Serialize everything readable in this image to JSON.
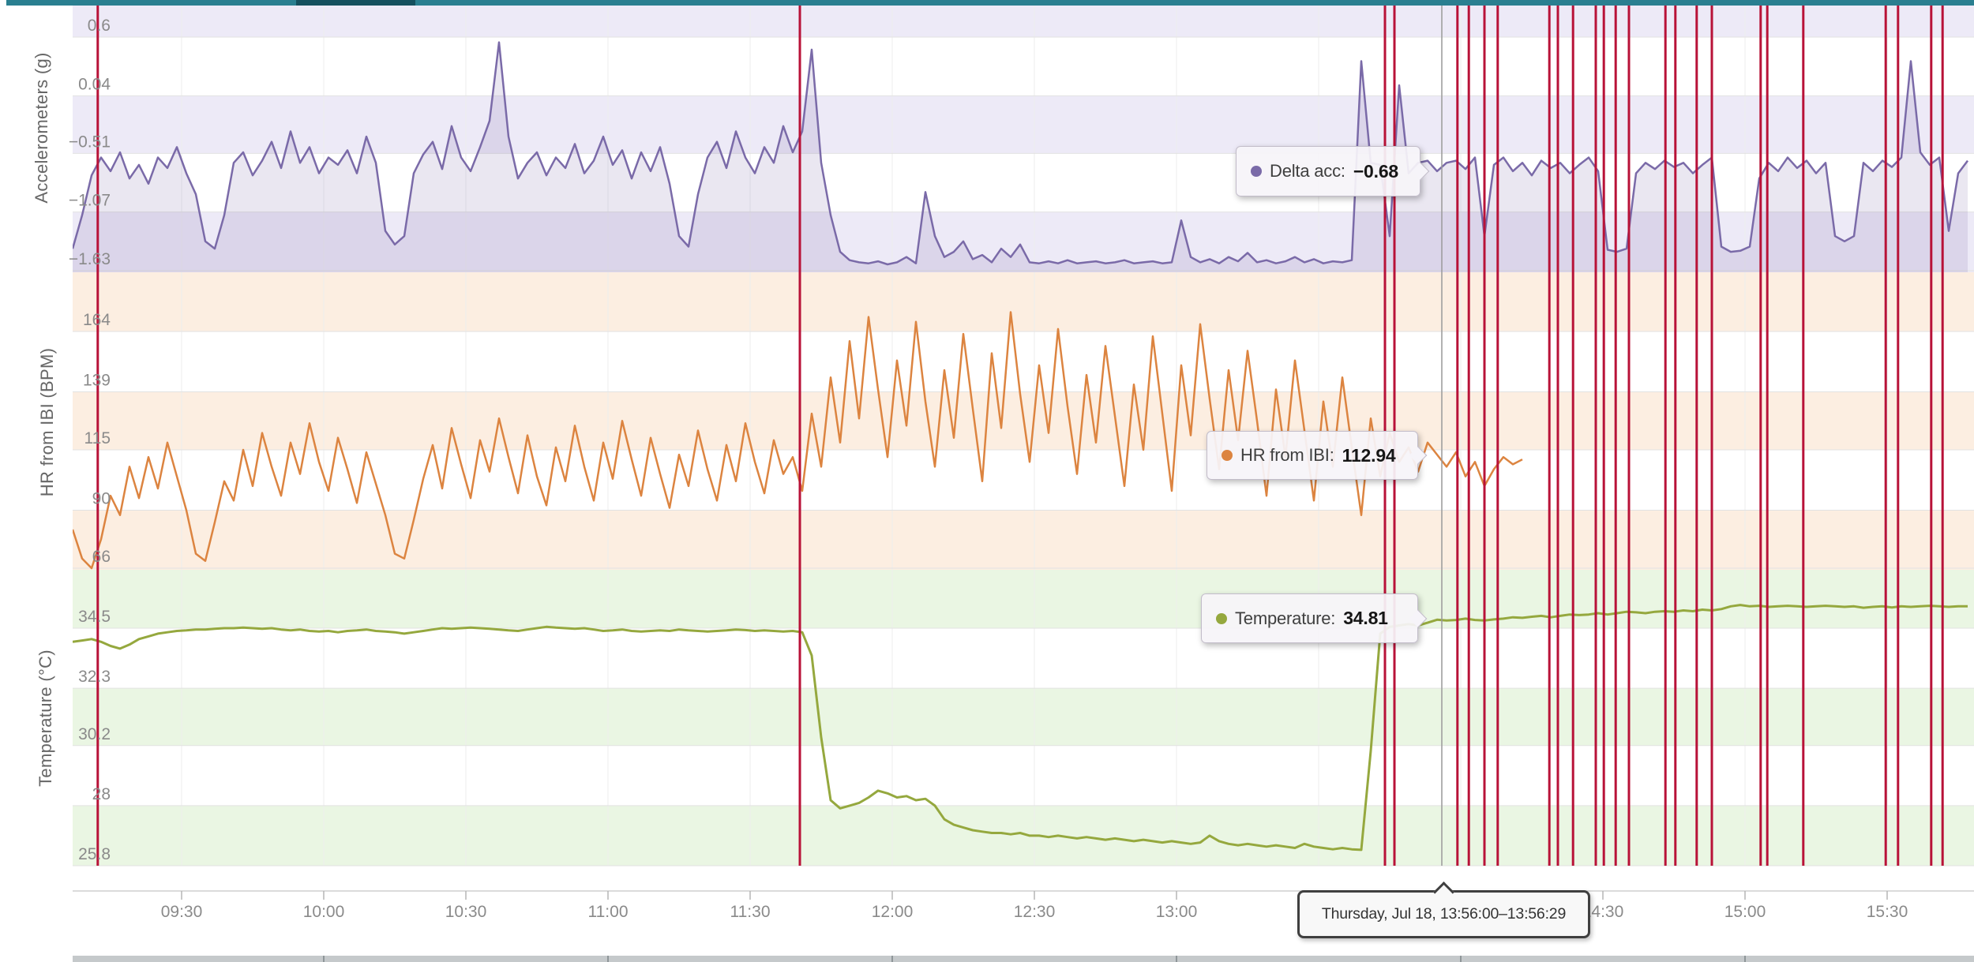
{
  "top_range_bar": {
    "track_color": "#2a7f90",
    "thumb_color": "#15505e"
  },
  "tooltips": {
    "delta_acc": {
      "label": "Delta acc:",
      "value": "−0.68"
    },
    "hr": {
      "label": "HR from IBI:",
      "value": "112.94"
    },
    "temperature": {
      "label": "Temperature:",
      "value": "34.81"
    },
    "time_range": {
      "text": "Thursday, Jul 18, 13:56:00–13:56:29"
    }
  },
  "chart_data": {
    "type": "line",
    "x_ticks": [
      {
        "label": "09:30",
        "minute": 30
      },
      {
        "label": "10:00",
        "minute": 60
      },
      {
        "label": "10:30",
        "minute": 90
      },
      {
        "label": "11:00",
        "minute": 120
      },
      {
        "label": "11:30",
        "minute": 150
      },
      {
        "label": "12:00",
        "minute": 180
      },
      {
        "label": "12:30",
        "minute": 210
      },
      {
        "label": "13:00",
        "minute": 240
      },
      {
        "label": "13:30",
        "minute": 270
      },
      {
        "label": "14:00",
        "minute": 300
      },
      {
        "label": "14:30",
        "minute": 330
      },
      {
        "label": "15:00",
        "minute": 360
      },
      {
        "label": "15:30",
        "minute": 390
      }
    ],
    "cursor": {
      "minute": 296,
      "time_label": "13:56"
    },
    "event_color": "#b81238",
    "event_line_minutes": [
      12.3,
      160.5,
      284.0,
      286.0,
      299.3,
      301.7,
      305.0,
      307.8,
      318.7,
      320.5,
      323.7,
      328.5,
      330.2,
      332.7,
      335.5,
      343.2,
      345.3,
      349.8,
      353.0,
      363.3,
      364.7,
      372.3,
      389.7,
      392.3,
      399.3,
      401.7
    ],
    "panels": [
      {
        "id": "accelerometer",
        "ylabel": "Accelerometers (g)",
        "yticks": [
          0.6,
          0.04,
          -0.51,
          -1.07,
          -1.63
        ],
        "band_color": "#edeaf7",
        "series": {
          "name": "Delta acc",
          "color": "#7a6aa8",
          "fill": "rgba(122,106,168,0.16)",
          "t0": 7,
          "dt": 2,
          "values": [
            -1.42,
            -1.1,
            -0.72,
            -0.55,
            -0.68,
            -0.5,
            -0.75,
            -0.62,
            -0.8,
            -0.55,
            -0.65,
            -0.45,
            -0.7,
            -0.9,
            -1.35,
            -1.42,
            -1.1,
            -0.6,
            -0.5,
            -0.72,
            -0.58,
            -0.4,
            -0.65,
            -0.3,
            -0.6,
            -0.45,
            -0.7,
            -0.55,
            -0.62,
            -0.48,
            -0.7,
            -0.35,
            -0.6,
            -1.25,
            -1.38,
            -1.3,
            -0.7,
            -0.52,
            -0.4,
            -0.66,
            -0.25,
            -0.55,
            -0.68,
            -0.45,
            -0.2,
            0.55,
            -0.35,
            -0.75,
            -0.6,
            -0.5,
            -0.72,
            -0.55,
            -0.65,
            -0.42,
            -0.7,
            -0.58,
            -0.35,
            -0.62,
            -0.48,
            -0.75,
            -0.5,
            -0.68,
            -0.45,
            -0.8,
            -1.3,
            -1.4,
            -0.9,
            -0.55,
            -0.4,
            -0.65,
            -0.3,
            -0.55,
            -0.7,
            -0.45,
            -0.6,
            -0.25,
            -0.5,
            -0.3,
            0.48,
            -0.6,
            -1.1,
            -1.45,
            -1.53,
            -1.55,
            -1.56,
            -1.54,
            -1.57,
            -1.55,
            -1.5,
            -1.56,
            -0.88,
            -1.3,
            -1.5,
            -1.45,
            -1.35,
            -1.52,
            -1.48,
            -1.55,
            -1.42,
            -1.5,
            -1.38,
            -1.55,
            -1.56,
            -1.54,
            -1.56,
            -1.53,
            -1.56,
            -1.55,
            -1.54,
            -1.56,
            -1.55,
            -1.53,
            -1.56,
            -1.55,
            -1.54,
            -1.56,
            -1.55,
            -1.15,
            -1.5,
            -1.55,
            -1.52,
            -1.56,
            -1.5,
            -1.54,
            -1.46,
            -1.55,
            -1.53,
            -1.56,
            -1.54,
            -1.5,
            -1.55,
            -1.52,
            -1.56,
            -1.54,
            -1.55,
            -1.53,
            0.37,
            -0.6,
            -0.62,
            -1.3,
            0.14,
            -0.7,
            -0.6,
            -0.58,
            -0.68,
            -0.6,
            -0.58,
            -0.66,
            -0.55,
            -1.3,
            -0.62,
            -0.55,
            -0.68,
            -0.6,
            -0.72,
            -0.58,
            -0.65,
            -0.6,
            -0.7,
            -0.62,
            -0.55,
            -0.68,
            -1.43,
            -1.45,
            -1.42,
            -0.7,
            -0.6,
            -0.66,
            -0.58,
            -0.64,
            -0.6,
            -0.7,
            -0.62,
            -0.55,
            -1.4,
            -1.45,
            -1.44,
            -1.4,
            -0.75,
            -0.6,
            -0.68,
            -0.55,
            -0.65,
            -0.58,
            -0.7,
            -0.6,
            -1.3,
            -1.35,
            -1.3,
            -0.6,
            -0.68,
            -0.58,
            -0.64,
            -0.55,
            0.37,
            -0.5,
            -0.62,
            -0.55,
            -1.25,
            -0.7,
            -0.58
          ]
        }
      },
      {
        "id": "hr",
        "ylabel": "HR from IBI (BPM)",
        "yticks": [
          164,
          139,
          115,
          90,
          66
        ],
        "band_color": "#fceee1",
        "series": {
          "name": "HR from IBI",
          "color": "#dc8440",
          "fill": null,
          "t0": 7,
          "dt": 2,
          "values": [
            82,
            70,
            66,
            78,
            96,
            88,
            108,
            95,
            112,
            99,
            118,
            104,
            90,
            72,
            69,
            85,
            102,
            94,
            115,
            100,
            122,
            108,
            96,
            118,
            105,
            126,
            110,
            98,
            120,
            107,
            93,
            114,
            101,
            88,
            72,
            70,
            86,
            103,
            117,
            99,
            124,
            109,
            95,
            119,
            106,
            128,
            112,
            97,
            121,
            104,
            92,
            116,
            102,
            125,
            108,
            94,
            118,
            103,
            127,
            111,
            96,
            120,
            105,
            91,
            113,
            100,
            123,
            107,
            94,
            117,
            102,
            126,
            110,
            97,
            119,
            105,
            112,
            98,
            130,
            108,
            145,
            118,
            160,
            128,
            170,
            140,
            112,
            152,
            125,
            168,
            135,
            108,
            148,
            120,
            163,
            132,
            102,
            155,
            124,
            172,
            138,
            110,
            150,
            122,
            165,
            133,
            105,
            146,
            118,
            158,
            129,
            100,
            142,
            115,
            162,
            130,
            98,
            150,
            121,
            167,
            136,
            107,
            148,
            119,
            156,
            127,
            96,
            140,
            112,
            152,
            123,
            94,
            135,
            108,
            145,
            116,
            88,
            128,
            104,
            122,
            110,
            116,
            106,
            118,
            113,
            108,
            114,
            104,
            110,
            100,
            107,
            112,
            109,
            111
          ]
        }
      },
      {
        "id": "temperature",
        "ylabel": "Temperature (°C)",
        "yticks": [
          34.5,
          32.3,
          30.2,
          28,
          25.8
        ],
        "band_color": "#eaf6e3",
        "series": {
          "name": "Temperature",
          "color": "#95a83e",
          "fill": null,
          "t0": 7,
          "dt": 2,
          "values": [
            34.0,
            34.05,
            34.1,
            34.0,
            33.85,
            33.75,
            33.9,
            34.1,
            34.2,
            34.3,
            34.35,
            34.4,
            34.42,
            34.45,
            34.45,
            34.48,
            34.5,
            34.5,
            34.52,
            34.5,
            34.48,
            34.5,
            34.45,
            34.42,
            34.45,
            34.4,
            34.38,
            34.4,
            34.35,
            34.4,
            34.42,
            34.45,
            34.4,
            34.38,
            34.35,
            34.3,
            34.35,
            34.4,
            34.45,
            34.5,
            34.48,
            34.5,
            34.52,
            34.5,
            34.48,
            34.45,
            34.42,
            34.4,
            34.45,
            34.5,
            34.55,
            34.52,
            34.5,
            34.48,
            34.5,
            34.45,
            34.4,
            34.42,
            34.45,
            34.4,
            34.38,
            34.4,
            34.42,
            34.4,
            34.45,
            34.42,
            34.4,
            34.38,
            34.4,
            34.42,
            34.45,
            34.43,
            34.4,
            34.42,
            34.4,
            34.38,
            34.4,
            34.35,
            33.5,
            30.5,
            28.2,
            27.9,
            28.0,
            28.1,
            28.3,
            28.55,
            28.45,
            28.3,
            28.35,
            28.2,
            28.25,
            28.0,
            27.5,
            27.3,
            27.2,
            27.1,
            27.05,
            27.0,
            27.0,
            26.95,
            27.0,
            26.9,
            26.9,
            26.85,
            26.9,
            26.85,
            26.8,
            26.85,
            26.8,
            26.75,
            26.8,
            26.75,
            26.7,
            26.75,
            26.7,
            26.65,
            26.7,
            26.65,
            26.6,
            26.65,
            26.9,
            26.7,
            26.6,
            26.55,
            26.6,
            26.55,
            26.5,
            26.55,
            26.5,
            26.45,
            26.6,
            26.5,
            26.45,
            26.4,
            26.45,
            26.4,
            26.38,
            30.0,
            34.3,
            34.55,
            34.6,
            34.65,
            34.6,
            34.7,
            34.81,
            34.78,
            34.8,
            34.85,
            34.8,
            34.78,
            34.82,
            34.85,
            34.9,
            34.88,
            34.92,
            34.95,
            34.9,
            34.95,
            35.0,
            34.98,
            35.0,
            35.05,
            35.0,
            35.05,
            35.1,
            35.08,
            35.05,
            35.1,
            35.12,
            35.1,
            35.15,
            35.12,
            35.18,
            35.15,
            35.2,
            35.3,
            35.35,
            35.3,
            35.32,
            35.28,
            35.3,
            35.32,
            35.3,
            35.28,
            35.3,
            35.32,
            35.3,
            35.28,
            35.3,
            35.25,
            35.28,
            35.3,
            35.26,
            35.3,
            35.28,
            35.3,
            35.32,
            35.3,
            35.28,
            35.3,
            35.3
          ]
        }
      }
    ]
  }
}
